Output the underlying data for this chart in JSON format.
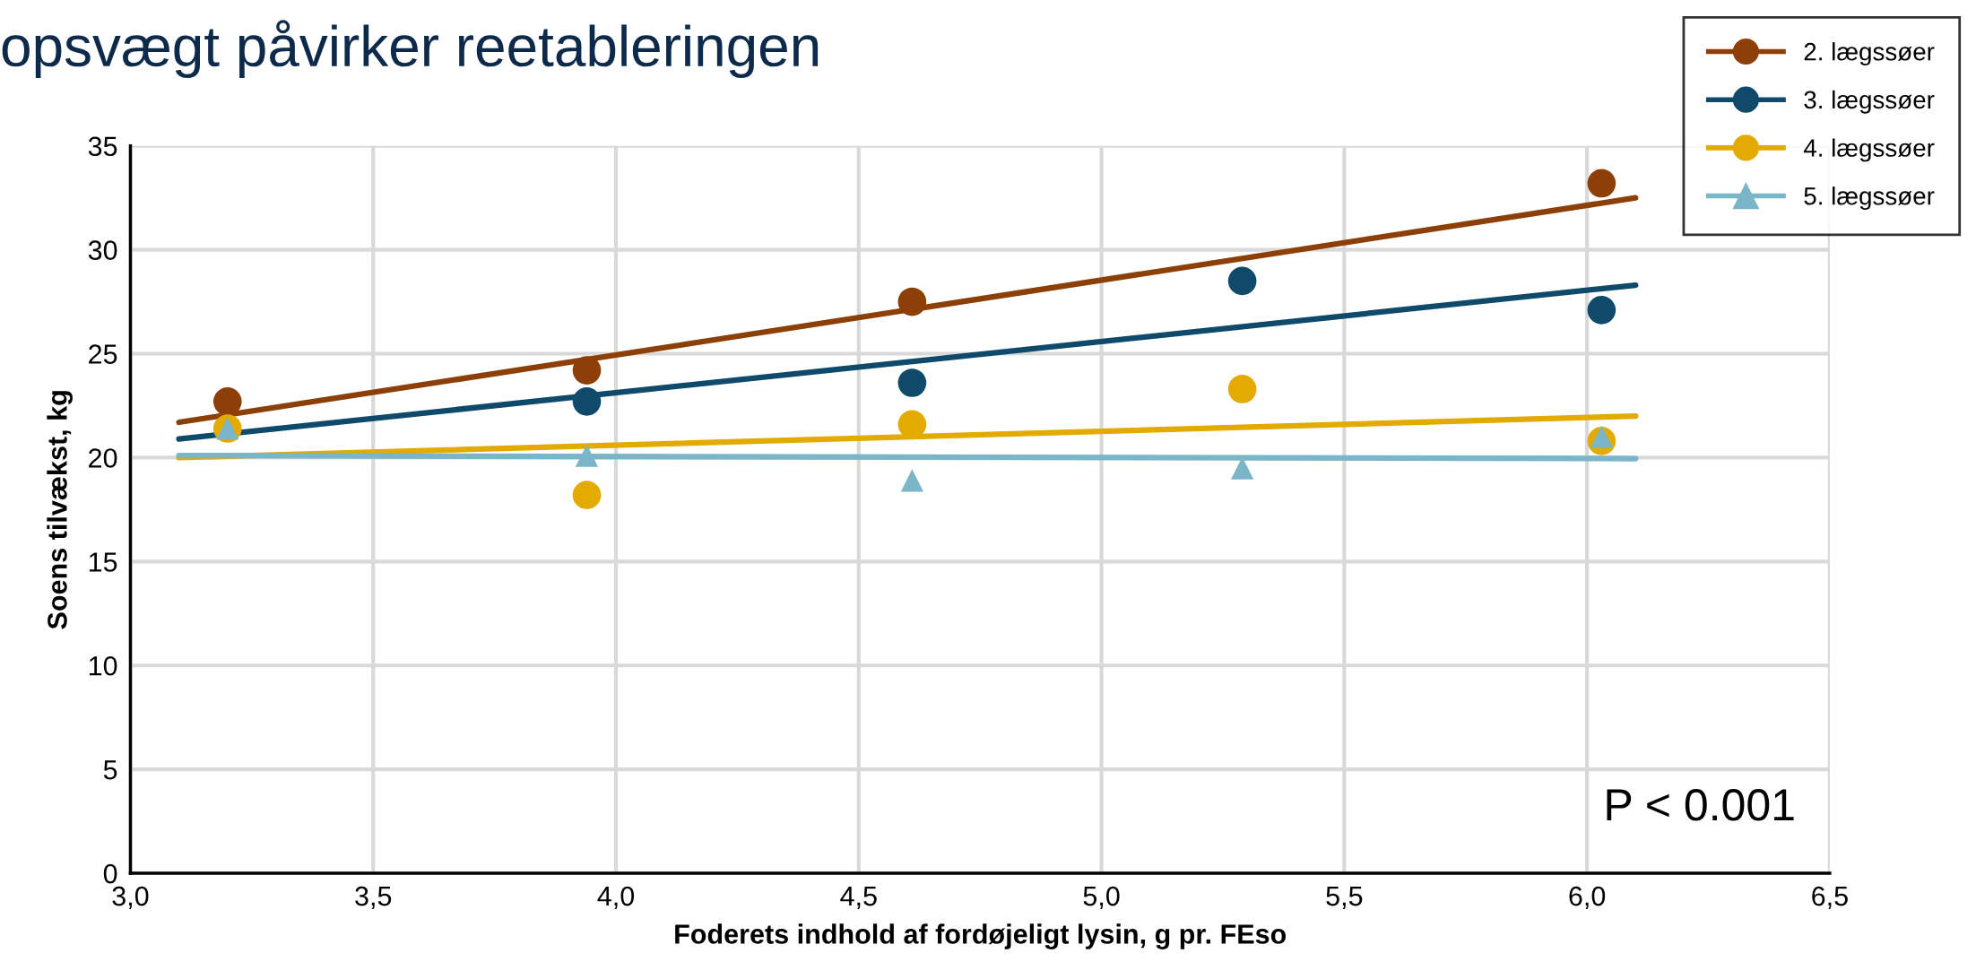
{
  "chart_data": {
    "type": "scatter",
    "title": "opsvægt påvirker reetableringen",
    "xlabel": "Foderets indhold af fordøjeligt lysin, g pr. FEso",
    "ylabel": "Soens tilvækst, kg",
    "xlim": [
      3.0,
      6.5
    ],
    "xticks": [
      {
        "value": 3.0,
        "label": "3,0"
      },
      {
        "value": 3.5,
        "label": "3,5"
      },
      {
        "value": 4.0,
        "label": "4,0"
      },
      {
        "value": 4.5,
        "label": "4,5"
      },
      {
        "value": 5.0,
        "label": "5,0"
      },
      {
        "value": 5.5,
        "label": "5,5"
      },
      {
        "value": 6.0,
        "label": "6,0"
      },
      {
        "value": 6.5,
        "label": "6,5"
      }
    ],
    "ylim": [
      0,
      35
    ],
    "yticks": [
      0,
      5,
      10,
      15,
      20,
      25,
      30,
      35
    ],
    "grid": true,
    "legend": "top right",
    "series": [
      {
        "name": "2. lægssøer",
        "color": "#8c4008",
        "marker": "circle",
        "x": [
          3.2,
          3.94,
          4.61,
          6.03
        ],
        "values": [
          22.7,
          24.2,
          27.5,
          33.2
        ]
      },
      {
        "name": "3. lægssøer",
        "color": "#0f4a6a",
        "marker": "circle",
        "x": [
          3.94,
          4.61,
          5.29,
          6.03
        ],
        "values": [
          22.7,
          23.6,
          28.5,
          27.1
        ]
      },
      {
        "name": "4. lægssøer",
        "color": "#e3aa00",
        "marker": "circle",
        "x": [
          3.2,
          3.94,
          4.61,
          5.29,
          6.03
        ],
        "values": [
          21.4,
          18.2,
          21.6,
          23.3,
          20.8
        ]
      },
      {
        "name": "5. lægssøer",
        "color": "#7ab5c8",
        "marker": "triangle",
        "x": [
          3.2,
          3.94,
          4.61,
          5.29,
          6.03
        ],
        "values": [
          21.4,
          20.1,
          18.9,
          19.5,
          21.0
        ]
      },
      {
        "type": "line",
        "color": "#8c4008",
        "x": [
          3.1,
          6.1
        ],
        "values": [
          21.7,
          32.5
        ]
      },
      {
        "type": "line",
        "color": "#0f4a6a",
        "x": [
          3.1,
          6.1
        ],
        "values": [
          20.9,
          28.3
        ]
      },
      {
        "type": "line",
        "color": "#e3aa00",
        "x": [
          3.1,
          6.1
        ],
        "values": [
          20.0,
          22.0
        ]
      },
      {
        "type": "line",
        "color": "#7ab5c8",
        "x": [
          3.1,
          6.1
        ],
        "values": [
          20.1,
          19.95
        ]
      }
    ],
    "annotations": [
      "P < 0.001"
    ]
  }
}
